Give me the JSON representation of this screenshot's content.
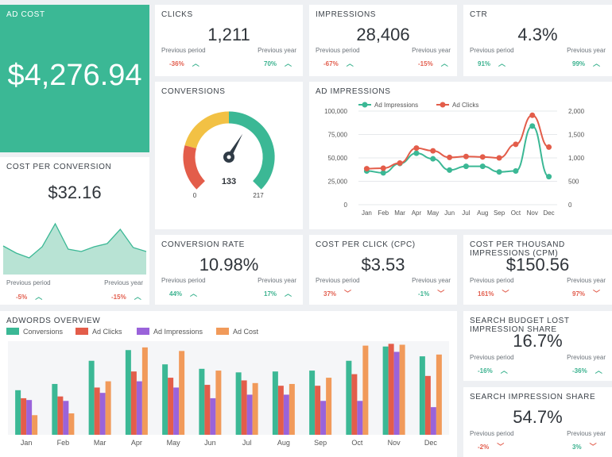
{
  "ad_cost": {
    "title": "AD COST",
    "value": "$4,276.94"
  },
  "cost_per_conversion": {
    "title": "COST PER CONVERSION",
    "value": "$32.16",
    "prev_period_label": "Previous period",
    "prev_period_value": "-5%",
    "prev_year_label": "Previous year",
    "prev_year_value": "-15%",
    "sparkline": [
      36,
      27,
      21,
      35,
      64,
      32,
      29,
      35,
      39,
      57,
      34,
      29
    ]
  },
  "clicks": {
    "title": "CLICKS",
    "value": "1,211",
    "prev_period_label": "Previous period",
    "prev_period_value": "-36%",
    "prev_year_label": "Previous year",
    "prev_year_value": "70%"
  },
  "impressions": {
    "title": "IMPRESSIONS",
    "value": "28,406",
    "prev_period_label": "Previous period",
    "prev_period_value": "-67%",
    "prev_year_label": "Previous year",
    "prev_year_value": "-15%"
  },
  "ctr": {
    "title": "CTR",
    "value": "4.3%",
    "prev_period_label": "Previous period",
    "prev_period_value": "91%",
    "prev_year_label": "Previous year",
    "prev_year_value": "99%"
  },
  "conversions": {
    "title": "CONVERSIONS",
    "value": "133",
    "min": "0",
    "max": "217",
    "gauge_value": 133,
    "gauge_max": 217
  },
  "conversion_rate": {
    "title": "CONVERSION RATE",
    "value": "10.98%",
    "prev_period_label": "Previous period",
    "prev_period_value": "44%",
    "prev_year_label": "Previous year",
    "prev_year_value": "17%"
  },
  "cpc": {
    "title": "COST PER CLICK (CPC)",
    "value": "$3.53",
    "prev_period_label": "Previous period",
    "prev_period_value": "37%",
    "prev_year_label": "Previous year",
    "prev_year_value": "-1%"
  },
  "cpm": {
    "title": "COST PER THOUSAND IMPRESSIONS (CPM)",
    "value": "$150.56",
    "prev_period_label": "Previous period",
    "prev_period_value": "161%",
    "prev_year_label": "Previous year",
    "prev_year_value": "97%"
  },
  "budget_lost": {
    "title": "SEARCH BUDGET LOST IMPRESSION SHARE",
    "value": "16.7%",
    "prev_period_label": "Previous period",
    "prev_period_value": "-16%",
    "prev_year_label": "Previous year",
    "prev_year_value": "-36%"
  },
  "impression_share": {
    "title": "SEARCH IMPRESSION SHARE",
    "value": "54.7%",
    "prev_period_label": "Previous period",
    "prev_period_value": "-2%",
    "prev_year_label": "Previous year",
    "prev_year_value": "3%"
  },
  "colors": {
    "teal": "#3bb895",
    "red": "#e35d4a",
    "purple": "#9a63da",
    "orange": "#f19a5a",
    "yellow": "#f2c144"
  },
  "chart_data": [
    {
      "type": "line",
      "title": "AD IMPRESSIONS",
      "categories": [
        "Jan",
        "Feb",
        "Mar",
        "Apr",
        "May",
        "Jun",
        "Jul",
        "Aug",
        "Sep",
        "Oct",
        "Nov",
        "Dec"
      ],
      "series": [
        {
          "name": "Ad Impressions",
          "axis": "left",
          "values": [
            36000,
            34000,
            44000,
            55000,
            49000,
            37000,
            41000,
            41000,
            35000,
            36000,
            84000,
            30000
          ]
        },
        {
          "name": "Ad Clicks",
          "axis": "right",
          "values": [
            770,
            780,
            890,
            1210,
            1150,
            1010,
            1030,
            1020,
            1000,
            1290,
            1910,
            1230
          ]
        }
      ],
      "yleft_ticks": [
        "0",
        "25,000",
        "50,000",
        "75,000",
        "100,000"
      ],
      "yright_ticks": [
        "0",
        "500",
        "1,000",
        "1,500",
        "2,000"
      ],
      "ylim_left": [
        0,
        100000
      ],
      "ylim_right": [
        0,
        2000
      ],
      "legend": "top"
    },
    {
      "type": "bar",
      "title": "ADWORDS OVERVIEW",
      "categories": [
        "Jan",
        "Feb",
        "Mar",
        "Apr",
        "May",
        "Jun",
        "Jul",
        "Aug",
        "Sep",
        "Oct",
        "Nov",
        "Dec"
      ],
      "series": [
        {
          "name": "Conversions",
          "values": [
            50,
            57,
            83,
            95,
            79,
            74,
            70,
            71,
            72,
            83,
            99,
            88
          ]
        },
        {
          "name": "Ad Clicks",
          "values": [
            41,
            43,
            53,
            71,
            64,
            56,
            61,
            55,
            55,
            68,
            102,
            66
          ]
        },
        {
          "name": "Ad Impressions",
          "values": [
            39,
            38,
            47,
            60,
            53,
            41,
            45,
            45,
            38,
            38,
            93,
            31
          ]
        },
        {
          "name": "Ad Cost",
          "values": [
            22,
            24,
            60,
            98,
            94,
            72,
            58,
            57,
            64,
            100,
            101,
            90
          ]
        }
      ],
      "ylim": [
        0,
        105
      ],
      "legend": "top-left"
    }
  ]
}
